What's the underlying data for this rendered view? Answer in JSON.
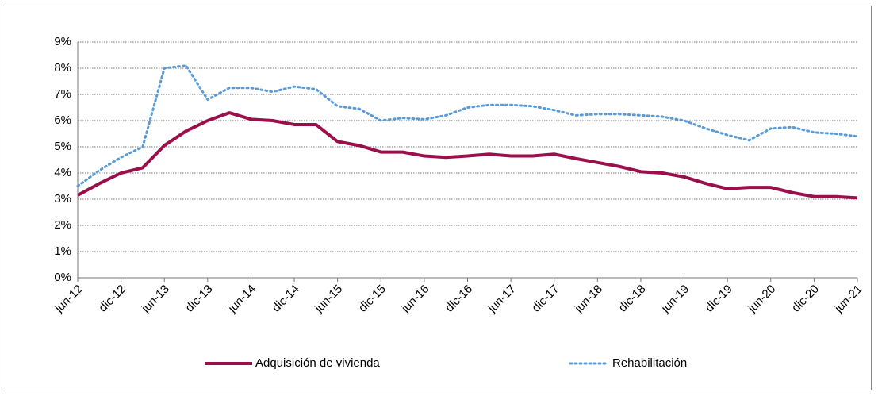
{
  "chart_data": {
    "type": "line",
    "categories": [
      "jun-12",
      null,
      "dic-12",
      null,
      "jun-13",
      null,
      "dic-13",
      null,
      "jun-14",
      null,
      "dic-14",
      null,
      "jun-15",
      null,
      "dic-15",
      null,
      "jun-16",
      null,
      "dic-16",
      null,
      "jun-17",
      null,
      "dic-17",
      null,
      "jun-18",
      null,
      "dic-18",
      null,
      "jun-19",
      null,
      "dic-19",
      null,
      "jun-20",
      null,
      "dic-20",
      null,
      "jun-21"
    ],
    "series": [
      {
        "name": "Adquisición de vivienda",
        "color": "#9b0f4b",
        "style": "solid",
        "values": [
          3.15,
          3.6,
          4.0,
          4.2,
          5.05,
          5.6,
          6.0,
          6.3,
          6.05,
          6.0,
          5.85,
          5.85,
          5.2,
          5.05,
          4.8,
          4.8,
          4.65,
          4.6,
          4.65,
          4.72,
          4.65,
          4.65,
          4.72,
          4.55,
          4.4,
          4.25,
          4.05,
          4.0,
          3.85,
          3.6,
          3.4,
          3.45,
          3.45,
          3.25,
          3.1,
          3.1,
          3.05
        ]
      },
      {
        "name": "Rehabilitación",
        "color": "#5b9bd5",
        "style": "dotted",
        "values": [
          3.5,
          4.1,
          4.6,
          5.0,
          8.0,
          8.1,
          6.8,
          7.25,
          7.25,
          7.1,
          7.3,
          7.2,
          6.55,
          6.45,
          6.0,
          6.1,
          6.05,
          6.2,
          6.5,
          6.6,
          6.6,
          6.55,
          6.4,
          6.2,
          6.25,
          6.25,
          6.2,
          6.15,
          6.0,
          5.7,
          5.45,
          5.25,
          5.7,
          5.75,
          5.55,
          5.5,
          5.4
        ]
      }
    ],
    "ylim": [
      0,
      9
    ],
    "yticks": [
      {
        "value": 0,
        "label": "0%"
      },
      {
        "value": 1,
        "label": "1%"
      },
      {
        "value": 2,
        "label": "2%"
      },
      {
        "value": 3,
        "label": "3%"
      },
      {
        "value": 4,
        "label": "4%"
      },
      {
        "value": 5,
        "label": "5%"
      },
      {
        "value": 6,
        "label": "6%"
      },
      {
        "value": 7,
        "label": "7%"
      },
      {
        "value": 8,
        "label": "8%"
      },
      {
        "value": 9,
        "label": "9%"
      }
    ],
    "grid": true,
    "legend": "bottom"
  }
}
